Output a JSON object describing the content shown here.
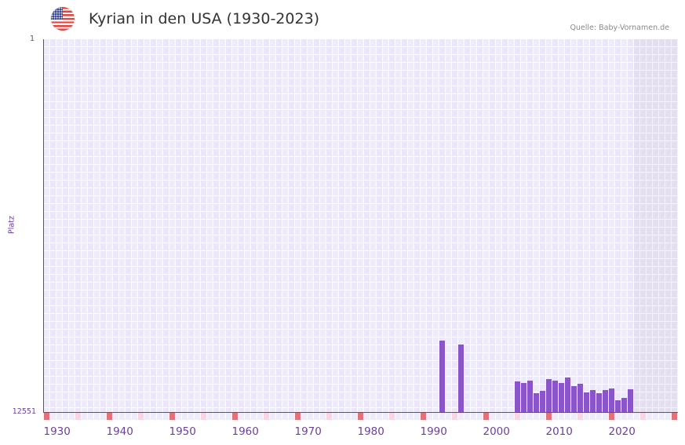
{
  "header": {
    "title": "Kyrian in den USA (1930-2023)",
    "source": "Quelle: Baby-Vornamen.de",
    "flag_icon": "us-flag-icon"
  },
  "yaxis": {
    "label": "Platz",
    "top_tick": "1",
    "bottom_tick": "12551"
  },
  "xaxis": {
    "ticks": [
      "1930",
      "1940",
      "1950",
      "1960",
      "1970",
      "1980",
      "1990",
      "2000",
      "2010",
      "2020"
    ]
  },
  "colors": {
    "bar": "#8a55c8",
    "axis": "#6b3fa0",
    "decade_marker": "#e3717a",
    "half_decade_marker": "#f6d6e1",
    "marker_default": "#efecfa",
    "grid": "#eeeaf9",
    "future_grid": "#e3dfee"
  },
  "chart_data": {
    "type": "bar",
    "title": "Kyrian in den USA (1930-2023)",
    "xlabel": "",
    "ylabel": "Platz",
    "ylim": [
      12551,
      1
    ],
    "y_inverted": true,
    "x_range": [
      1930,
      2030
    ],
    "shaded_future_from": 2024,
    "grid": true,
    "legend": null,
    "categories": [
      1993,
      1996,
      2005,
      2006,
      2007,
      2008,
      2009,
      2010,
      2011,
      2012,
      2013,
      2014,
      2015,
      2016,
      2017,
      2018,
      2019,
      2020,
      2021,
      2022,
      2023
    ],
    "values": [
      10146,
      10278,
      11520,
      11573,
      11493,
      11916,
      11837,
      11440,
      11493,
      11573,
      11388,
      11678,
      11599,
      11890,
      11811,
      11916,
      11811,
      11758,
      12154,
      12075,
      11784
    ],
    "series": [
      {
        "name": "Platz",
        "values": [
          10146,
          10278,
          11520,
          11573,
          11493,
          11916,
          11837,
          11440,
          11493,
          11573,
          11388,
          11678,
          11599,
          11890,
          11811,
          11916,
          11811,
          11758,
          12154,
          12075,
          11784
        ]
      }
    ]
  }
}
